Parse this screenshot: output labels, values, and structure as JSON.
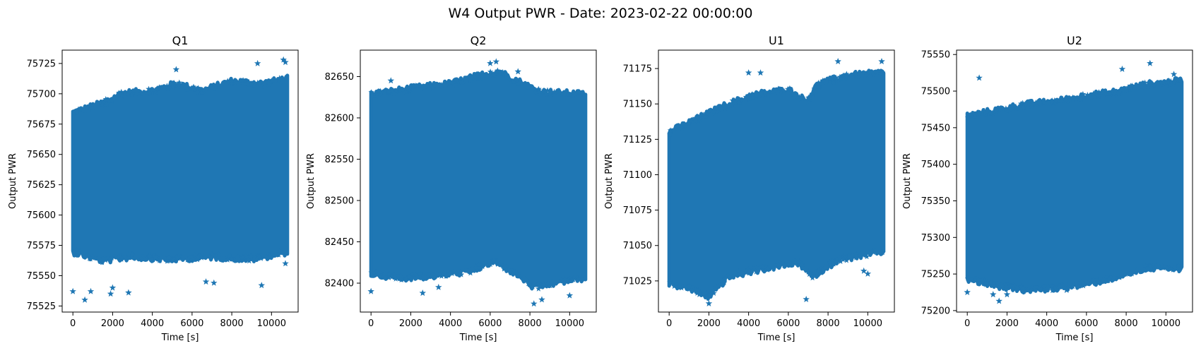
{
  "figure": {
    "title": "W4 Output PWR - Date: 2023-02-22 00:00:00",
    "marker": "star",
    "color": "#1f77b4"
  },
  "chart_data": [
    {
      "type": "scatter",
      "title": "Q1",
      "xlabel": "Time [s]",
      "ylabel": "Output PWR",
      "xlim": [
        -540,
        11340
      ],
      "ylim": [
        75520,
        75736
      ],
      "xticks": [
        0,
        2000,
        4000,
        6000,
        8000,
        10000
      ],
      "yticks": [
        75525,
        75550,
        75575,
        75600,
        75625,
        75650,
        75675,
        75700,
        75725
      ],
      "series": [
        {
          "color": "#1f77b4",
          "x_range": [
            0,
            10800
          ],
          "band_upper": [
            [
              0,
              75682
            ],
            [
              1500,
              75690
            ],
            [
              2500,
              75698
            ],
            [
              4000,
              75700
            ],
            [
              5200,
              75706
            ],
            [
              6500,
              75700
            ],
            [
              8000,
              75708
            ],
            [
              9500,
              75706
            ],
            [
              10800,
              75710
            ]
          ],
          "band_lower": [
            [
              0,
              75572
            ],
            [
              1500,
              75565
            ],
            [
              3000,
              75568
            ],
            [
              5000,
              75566
            ],
            [
              7000,
              75568
            ],
            [
              9000,
              75566
            ],
            [
              10800,
              75572
            ]
          ],
          "outliers": [
            [
              0,
              75537
            ],
            [
              600,
              75530
            ],
            [
              900,
              75537
            ],
            [
              1900,
              75535
            ],
            [
              2000,
              75540
            ],
            [
              2800,
              75536
            ],
            [
              5200,
              75720
            ],
            [
              6700,
              75545
            ],
            [
              7100,
              75544
            ],
            [
              9300,
              75725
            ],
            [
              10600,
              75728
            ],
            [
              10700,
              75726
            ],
            [
              9500,
              75542
            ],
            [
              10700,
              75560
            ]
          ]
        }
      ]
    },
    {
      "type": "scatter",
      "title": "Q2",
      "xlabel": "Time [s]",
      "ylabel": "Output PWR",
      "xlim": [
        -540,
        11340
      ],
      "ylim": [
        82365,
        82682
      ],
      "xticks": [
        0,
        2000,
        4000,
        6000,
        8000,
        10000
      ],
      "yticks": [
        82400,
        82450,
        82500,
        82550,
        82600,
        82650
      ],
      "series": [
        {
          "color": "#1f77b4",
          "x_range": [
            0,
            10800
          ],
          "band_upper": [
            [
              0,
              82625
            ],
            [
              2000,
              82632
            ],
            [
              4000,
              82638
            ],
            [
              5500,
              82648
            ],
            [
              6500,
              82652
            ],
            [
              7500,
              82640
            ],
            [
              8500,
              82628
            ],
            [
              10800,
              82625
            ]
          ],
          "band_lower": [
            [
              0,
              82415
            ],
            [
              1500,
              82410
            ],
            [
              3000,
              82412
            ],
            [
              5000,
              82418
            ],
            [
              6200,
              82430
            ],
            [
              7500,
              82412
            ],
            [
              8200,
              82398
            ],
            [
              9500,
              82405
            ],
            [
              10800,
              82410
            ]
          ],
          "outliers": [
            [
              0,
              82390
            ],
            [
              2600,
              82388
            ],
            [
              6000,
              82666
            ],
            [
              6300,
              82668
            ],
            [
              8200,
              82375
            ],
            [
              8600,
              82380
            ],
            [
              10000,
              82385
            ],
            [
              3400,
              82395
            ],
            [
              1000,
              82645
            ],
            [
              7400,
              82656
            ]
          ]
        }
      ]
    },
    {
      "type": "scatter",
      "title": "U1",
      "xlabel": "Time [s]",
      "ylabel": "Output PWR",
      "xlim": [
        -540,
        11340
      ],
      "ylim": [
        71003,
        71188
      ],
      "xticks": [
        0,
        2000,
        4000,
        6000,
        8000,
        10000
      ],
      "yticks": [
        71025,
        71050,
        71075,
        71100,
        71125,
        71150,
        71175
      ],
      "series": [
        {
          "color": "#1f77b4",
          "x_range": [
            0,
            10800
          ],
          "band_upper": [
            [
              0,
              71128
            ],
            [
              1500,
              71138
            ],
            [
              3000,
              71148
            ],
            [
              4500,
              71155
            ],
            [
              6000,
              71158
            ],
            [
              6900,
              71150
            ],
            [
              7500,
              71162
            ],
            [
              9000,
              71168
            ],
            [
              10800,
              71170
            ]
          ],
          "band_lower": [
            [
              0,
              71025
            ],
            [
              1000,
              71022
            ],
            [
              2000,
              71016
            ],
            [
              3000,
              71030
            ],
            [
              4500,
              71035
            ],
            [
              6500,
              71040
            ],
            [
              7200,
              71030
            ],
            [
              8500,
              71042
            ],
            [
              10800,
              71048
            ]
          ],
          "outliers": [
            [
              2000,
              71009
            ],
            [
              6900,
              71012
            ],
            [
              8500,
              71180
            ],
            [
              10700,
              71180
            ],
            [
              4000,
              71172
            ],
            [
              4600,
              71172
            ],
            [
              9800,
              71032
            ],
            [
              10000,
              71030
            ]
          ]
        }
      ]
    },
    {
      "type": "scatter",
      "title": "U2",
      "xlabel": "Time [s]",
      "ylabel": "Output PWR",
      "xlim": [
        -540,
        11340
      ],
      "ylim": [
        75198,
        75556
      ],
      "xticks": [
        0,
        2000,
        4000,
        6000,
        8000,
        10000
      ],
      "yticks": [
        75200,
        75250,
        75300,
        75350,
        75400,
        75450,
        75500,
        75550
      ],
      "series": [
        {
          "color": "#1f77b4",
          "x_range": [
            0,
            10800
          ],
          "band_upper": [
            [
              0,
              75462
            ],
            [
              1500,
              75470
            ],
            [
              3000,
              75478
            ],
            [
              4500,
              75482
            ],
            [
              6000,
              75490
            ],
            [
              7500,
              75495
            ],
            [
              9000,
              75505
            ],
            [
              10800,
              75510
            ]
          ],
          "band_lower": [
            [
              0,
              75248
            ],
            [
              1500,
              75238
            ],
            [
              3000,
              75232
            ],
            [
              4500,
              75235
            ],
            [
              6000,
              75240
            ],
            [
              7500,
              75250
            ],
            [
              9000,
              75262
            ],
            [
              10800,
              75262
            ]
          ],
          "outliers": [
            [
              600,
              75518
            ],
            [
              1600,
              75213
            ],
            [
              1300,
              75222
            ],
            [
              9200,
              75538
            ],
            [
              7800,
              75530
            ],
            [
              0,
              75225
            ],
            [
              2000,
              75222
            ],
            [
              5000,
              75228
            ],
            [
              10400,
              75523
            ]
          ]
        }
      ]
    }
  ]
}
